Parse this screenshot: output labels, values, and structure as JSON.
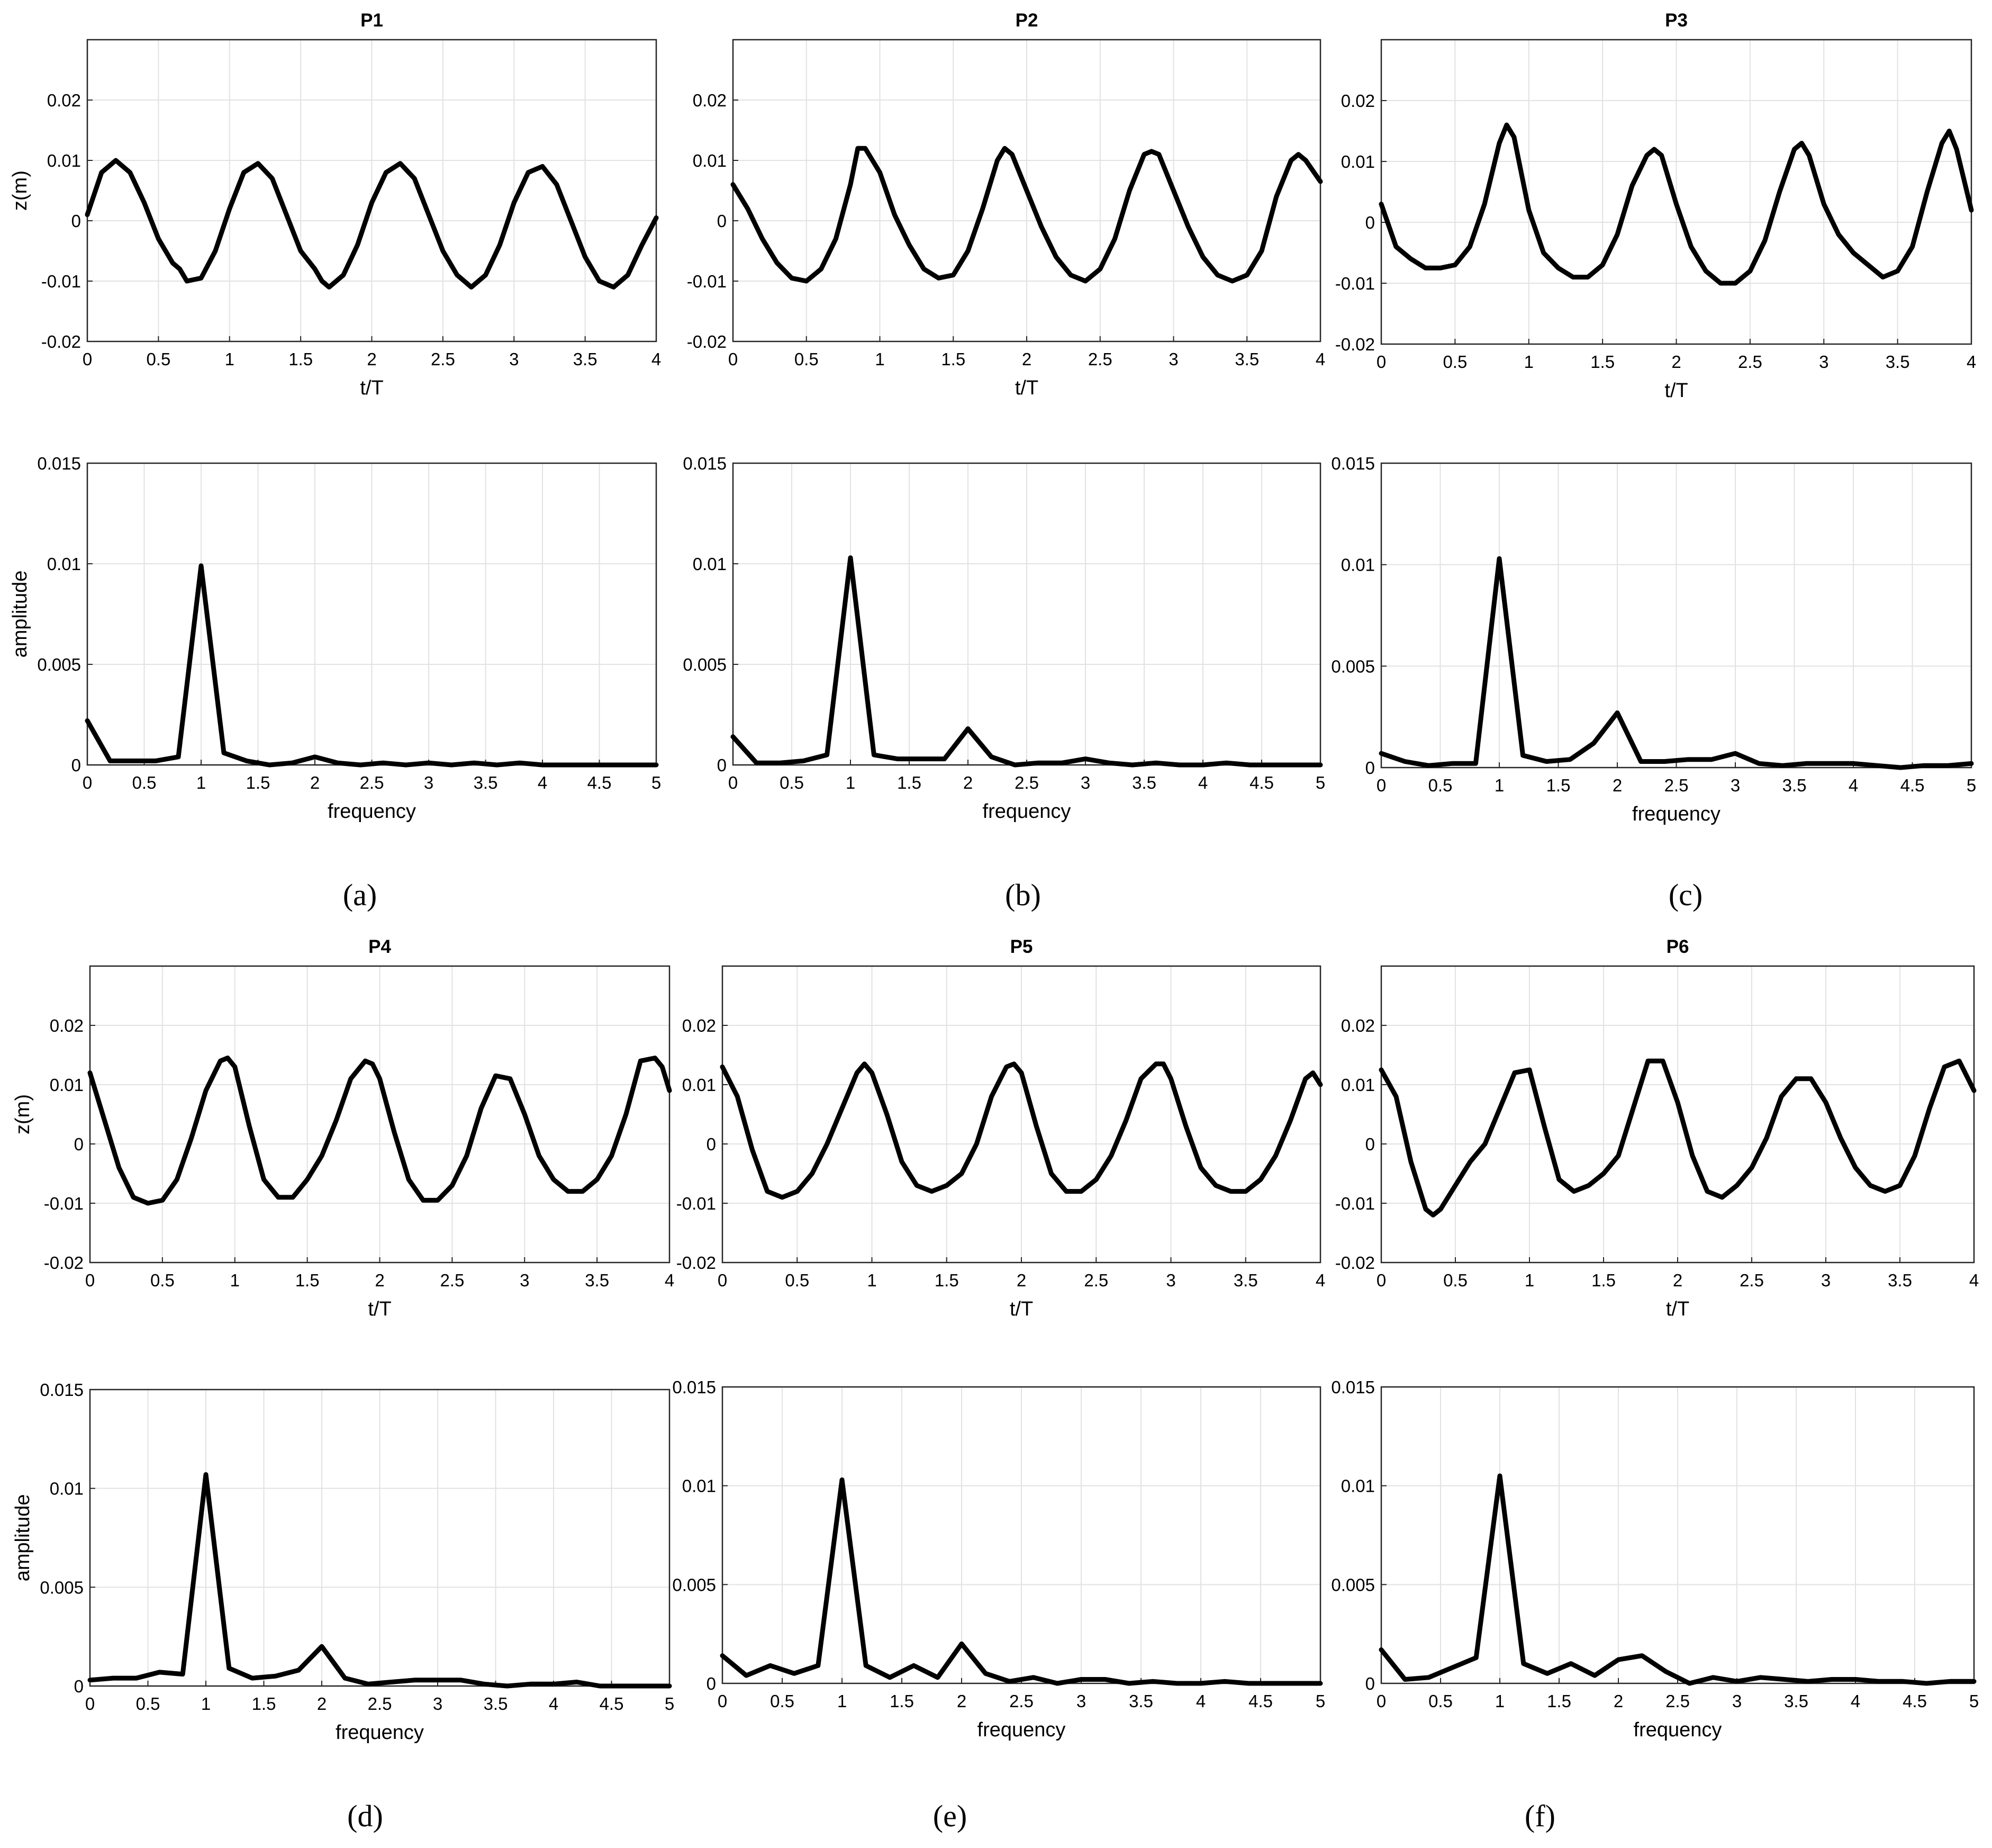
{
  "panels": [
    {
      "label": "(a)",
      "title": "P1"
    },
    {
      "label": "(b)",
      "title": "P2"
    },
    {
      "label": "(c)",
      "title": "P3"
    },
    {
      "label": "(d)",
      "title": "P4"
    },
    {
      "label": "(e)",
      "title": "P5"
    },
    {
      "label": "(f)",
      "title": "P6"
    }
  ],
  "chart_data": [
    {
      "panel": "(a)",
      "kind": "time",
      "type": "line",
      "title": "P1",
      "xlabel": "t/T",
      "ylabel": "z(m)",
      "xlim": [
        0,
        4
      ],
      "ylim": [
        -0.02,
        0.03
      ],
      "x": [
        0,
        0.1,
        0.2,
        0.3,
        0.4,
        0.5,
        0.6,
        0.65,
        0.7,
        0.8,
        0.9,
        1.0,
        1.1,
        1.2,
        1.3,
        1.4,
        1.5,
        1.6,
        1.65,
        1.7,
        1.8,
        1.9,
        2.0,
        2.1,
        2.2,
        2.3,
        2.4,
        2.5,
        2.6,
        2.7,
        2.8,
        2.9,
        3.0,
        3.1,
        3.2,
        3.3,
        3.4,
        3.5,
        3.6,
        3.7,
        3.8,
        3.9,
        4.0
      ],
      "y": [
        0.001,
        0.008,
        0.01,
        0.008,
        0.003,
        -0.003,
        -0.007,
        -0.008,
        -0.01,
        -0.0095,
        -0.005,
        0.002,
        0.008,
        0.0095,
        0.007,
        0.001,
        -0.005,
        -0.008,
        -0.01,
        -0.011,
        -0.009,
        -0.004,
        0.003,
        0.008,
        0.0095,
        0.007,
        0.001,
        -0.005,
        -0.009,
        -0.011,
        -0.009,
        -0.004,
        0.003,
        0.008,
        0.009,
        0.006,
        0.0,
        -0.006,
        -0.01,
        -0.011,
        -0.009,
        -0.004,
        0.0005
      ],
      "xticks": [
        "0",
        "0.5",
        "1",
        "1.5",
        "2",
        "2.5",
        "3",
        "3.5",
        "4"
      ],
      "yticks": [
        "-0.02",
        "-0.01",
        "0",
        "0.01",
        "0.02"
      ]
    },
    {
      "panel": "(a)",
      "kind": "freq",
      "type": "line",
      "xlabel": "frequency",
      "ylabel": "amplitude",
      "xlim": [
        0,
        5
      ],
      "ylim": [
        0,
        0.015
      ],
      "x": [
        0,
        0.2,
        0.4,
        0.6,
        0.8,
        1.0,
        1.2,
        1.4,
        1.6,
        1.8,
        2.0,
        2.2,
        2.4,
        2.6,
        2.8,
        3.0,
        3.2,
        3.4,
        3.6,
        3.8,
        4.0,
        4.2,
        4.4,
        4.6,
        4.8,
        5.0
      ],
      "y": [
        0.0022,
        0.0002,
        0.0002,
        0.0002,
        0.0004,
        0.0099,
        0.0006,
        0.0002,
        0.0,
        0.0001,
        0.0004,
        0.0001,
        0.0,
        0.0001,
        0.0,
        0.0001,
        0.0,
        0.0001,
        0.0,
        0.0001,
        0.0,
        0.0,
        0.0,
        0.0,
        0.0,
        0.0
      ],
      "xticks": [
        "0",
        "0.5",
        "1",
        "1.5",
        "2",
        "2.5",
        "3",
        "3.5",
        "4",
        "4.5",
        "5"
      ],
      "yticks": [
        "0",
        "0.005",
        "0.01",
        "0.015"
      ]
    },
    {
      "panel": "(b)",
      "kind": "time",
      "type": "line",
      "title": "P2",
      "xlabel": "t/T",
      "ylabel": "",
      "xlim": [
        0,
        4
      ],
      "ylim": [
        -0.02,
        0.03
      ],
      "x": [
        0,
        0.1,
        0.2,
        0.3,
        0.4,
        0.5,
        0.6,
        0.7,
        0.8,
        0.85,
        0.9,
        1.0,
        1.1,
        1.2,
        1.3,
        1.4,
        1.5,
        1.6,
        1.7,
        1.8,
        1.85,
        1.9,
        2.0,
        2.1,
        2.2,
        2.3,
        2.4,
        2.5,
        2.6,
        2.7,
        2.8,
        2.85,
        2.9,
        3.0,
        3.1,
        3.2,
        3.3,
        3.4,
        3.5,
        3.6,
        3.7,
        3.8,
        3.85,
        3.9,
        4.0
      ],
      "y": [
        0.006,
        0.002,
        -0.003,
        -0.007,
        -0.0095,
        -0.01,
        -0.008,
        -0.003,
        0.006,
        0.012,
        0.012,
        0.008,
        0.001,
        -0.004,
        -0.008,
        -0.0095,
        -0.009,
        -0.005,
        0.002,
        0.01,
        0.012,
        0.011,
        0.005,
        -0.001,
        -0.006,
        -0.009,
        -0.01,
        -0.008,
        -0.003,
        0.005,
        0.011,
        0.0115,
        0.011,
        0.005,
        -0.001,
        -0.006,
        -0.009,
        -0.01,
        -0.009,
        -0.005,
        0.004,
        0.01,
        0.011,
        0.01,
        0.0065
      ],
      "xticks": [
        "0",
        "0.5",
        "1",
        "1.5",
        "2",
        "2.5",
        "3",
        "3.5",
        "4"
      ],
      "yticks": [
        "-0.02",
        "-0.01",
        "0",
        "0.01",
        "0.02"
      ]
    },
    {
      "panel": "(b)",
      "kind": "freq",
      "type": "line",
      "xlabel": "frequency",
      "ylabel": "",
      "xlim": [
        0,
        5
      ],
      "ylim": [
        0,
        0.015
      ],
      "x": [
        0,
        0.2,
        0.4,
        0.6,
        0.8,
        1.0,
        1.2,
        1.4,
        1.6,
        1.8,
        2.0,
        2.2,
        2.4,
        2.6,
        2.8,
        3.0,
        3.2,
        3.4,
        3.6,
        3.8,
        4.0,
        4.2,
        4.4,
        4.6,
        4.8,
        5.0
      ],
      "y": [
        0.0014,
        0.0001,
        0.0001,
        0.0002,
        0.0005,
        0.0103,
        0.0005,
        0.0003,
        0.0003,
        0.0003,
        0.0018,
        0.0004,
        0.0,
        0.0001,
        0.0001,
        0.0003,
        0.0001,
        0.0,
        0.0001,
        0.0,
        0.0,
        0.0001,
        0.0,
        0.0,
        0.0,
        0.0
      ],
      "xticks": [
        "0",
        "0.5",
        "1",
        "1.5",
        "2",
        "2.5",
        "3",
        "3.5",
        "4",
        "4.5",
        "5"
      ],
      "yticks": [
        "0",
        "0.005",
        "0.01",
        "0.015"
      ]
    },
    {
      "panel": "(c)",
      "kind": "time",
      "type": "line",
      "title": "P3",
      "xlabel": "t/T",
      "ylabel": "",
      "xlim": [
        0,
        4
      ],
      "ylim": [
        -0.02,
        0.03
      ],
      "x": [
        0,
        0.1,
        0.2,
        0.3,
        0.4,
        0.5,
        0.6,
        0.7,
        0.8,
        0.85,
        0.9,
        1.0,
        1.1,
        1.2,
        1.3,
        1.4,
        1.5,
        1.6,
        1.7,
        1.8,
        1.85,
        1.9,
        2.0,
        2.1,
        2.2,
        2.3,
        2.4,
        2.5,
        2.6,
        2.7,
        2.8,
        2.85,
        2.9,
        3.0,
        3.1,
        3.2,
        3.3,
        3.4,
        3.5,
        3.6,
        3.7,
        3.8,
        3.85,
        3.9,
        4.0
      ],
      "y": [
        0.003,
        -0.004,
        -0.006,
        -0.0075,
        -0.0075,
        -0.007,
        -0.004,
        0.003,
        0.013,
        0.016,
        0.014,
        0.002,
        -0.005,
        -0.0075,
        -0.009,
        -0.009,
        -0.007,
        -0.002,
        0.006,
        0.011,
        0.012,
        0.011,
        0.003,
        -0.004,
        -0.008,
        -0.01,
        -0.01,
        -0.008,
        -0.003,
        0.005,
        0.012,
        0.013,
        0.011,
        0.003,
        -0.002,
        -0.005,
        -0.007,
        -0.009,
        -0.008,
        -0.004,
        0.005,
        0.013,
        0.015,
        0.012,
        0.002
      ],
      "xticks": [
        "0",
        "0.5",
        "1",
        "1.5",
        "2",
        "2.5",
        "3",
        "3.5",
        "4"
      ],
      "yticks": [
        "-0.02",
        "-0.01",
        "0",
        "0.01",
        "0.02"
      ]
    },
    {
      "panel": "(c)",
      "kind": "freq",
      "type": "line",
      "xlabel": "frequency",
      "ylabel": "",
      "xlim": [
        0,
        5
      ],
      "ylim": [
        0,
        0.015
      ],
      "x": [
        0,
        0.2,
        0.4,
        0.6,
        0.8,
        1.0,
        1.2,
        1.4,
        1.6,
        1.8,
        2.0,
        2.2,
        2.4,
        2.6,
        2.8,
        3.0,
        3.2,
        3.4,
        3.6,
        3.8,
        4.0,
        4.2,
        4.4,
        4.6,
        4.8,
        5.0
      ],
      "y": [
        0.0007,
        0.0003,
        0.0001,
        0.0002,
        0.0002,
        0.0103,
        0.0006,
        0.0003,
        0.0004,
        0.0012,
        0.0027,
        0.0003,
        0.0003,
        0.0004,
        0.0004,
        0.0007,
        0.0002,
        0.0001,
        0.0002,
        0.0002,
        0.0002,
        0.0001,
        0.0,
        0.0001,
        0.0001,
        0.0002
      ],
      "xticks": [
        "0",
        "0.5",
        "1",
        "1.5",
        "2",
        "2.5",
        "3",
        "3.5",
        "4",
        "4.5",
        "5"
      ],
      "yticks": [
        "0",
        "0.005",
        "0.01",
        "0.015"
      ]
    },
    {
      "panel": "(d)",
      "kind": "time",
      "type": "line",
      "title": "P4",
      "xlabel": "t/T",
      "ylabel": "z(m)",
      "xlim": [
        0,
        4
      ],
      "ylim": [
        -0.02,
        0.03
      ],
      "x": [
        0,
        0.1,
        0.2,
        0.3,
        0.4,
        0.5,
        0.6,
        0.7,
        0.8,
        0.9,
        0.95,
        1.0,
        1.1,
        1.2,
        1.3,
        1.4,
        1.5,
        1.6,
        1.7,
        1.8,
        1.9,
        1.95,
        2.0,
        2.1,
        2.2,
        2.3,
        2.4,
        2.5,
        2.6,
        2.7,
        2.8,
        2.9,
        3.0,
        3.1,
        3.2,
        3.3,
        3.4,
        3.5,
        3.6,
        3.7,
        3.8,
        3.9,
        3.95,
        4.0
      ],
      "y": [
        0.012,
        0.004,
        -0.004,
        -0.009,
        -0.01,
        -0.0095,
        -0.006,
        0.001,
        0.009,
        0.014,
        0.0145,
        0.013,
        0.003,
        -0.006,
        -0.009,
        -0.009,
        -0.006,
        -0.002,
        0.004,
        0.011,
        0.014,
        0.0135,
        0.011,
        0.002,
        -0.006,
        -0.0095,
        -0.0095,
        -0.007,
        -0.002,
        0.006,
        0.0115,
        0.011,
        0.005,
        -0.002,
        -0.006,
        -0.008,
        -0.008,
        -0.006,
        -0.002,
        0.005,
        0.014,
        0.0145,
        0.013,
        0.009
      ],
      "xticks": [
        "0",
        "0.5",
        "1",
        "1.5",
        "2",
        "2.5",
        "3",
        "3.5",
        "4"
      ],
      "yticks": [
        "-0.02",
        "-0.01",
        "0",
        "0.01",
        "0.02"
      ]
    },
    {
      "panel": "(d)",
      "kind": "freq",
      "type": "line",
      "xlabel": "frequency",
      "ylabel": "amplitude",
      "xlim": [
        0,
        5
      ],
      "ylim": [
        0,
        0.015
      ],
      "x": [
        0,
        0.2,
        0.4,
        0.6,
        0.8,
        1.0,
        1.2,
        1.4,
        1.6,
        1.8,
        2.0,
        2.2,
        2.4,
        2.6,
        2.8,
        3.0,
        3.2,
        3.4,
        3.6,
        3.8,
        4.0,
        4.2,
        4.4,
        4.6,
        4.8,
        5.0
      ],
      "y": [
        0.0003,
        0.0004,
        0.0004,
        0.0007,
        0.0006,
        0.0107,
        0.0009,
        0.0004,
        0.0005,
        0.0008,
        0.002,
        0.0004,
        0.0001,
        0.0002,
        0.0003,
        0.0003,
        0.0003,
        0.0001,
        0.0,
        0.0001,
        0.0001,
        0.0002,
        0.0,
        0.0,
        0.0,
        0.0
      ],
      "xticks": [
        "0",
        "0.5",
        "1",
        "1.5",
        "2",
        "2.5",
        "3",
        "3.5",
        "4",
        "4.5",
        "5"
      ],
      "yticks": [
        "0",
        "0.005",
        "0.01",
        "0.015"
      ]
    },
    {
      "panel": "(e)",
      "kind": "time",
      "type": "line",
      "title": "P5",
      "xlabel": "t/T",
      "ylabel": "",
      "xlim": [
        0,
        4
      ],
      "ylim": [
        -0.02,
        0.03
      ],
      "x": [
        0,
        0.1,
        0.2,
        0.3,
        0.4,
        0.5,
        0.6,
        0.7,
        0.8,
        0.9,
        0.95,
        1.0,
        1.1,
        1.2,
        1.3,
        1.4,
        1.5,
        1.6,
        1.7,
        1.8,
        1.9,
        1.95,
        2.0,
        2.1,
        2.2,
        2.3,
        2.4,
        2.5,
        2.6,
        2.7,
        2.8,
        2.9,
        2.95,
        3.0,
        3.1,
        3.2,
        3.3,
        3.4,
        3.5,
        3.6,
        3.7,
        3.8,
        3.9,
        3.95,
        4.0
      ],
      "y": [
        0.013,
        0.008,
        -0.001,
        -0.008,
        -0.009,
        -0.008,
        -0.005,
        0.0,
        0.006,
        0.012,
        0.0135,
        0.012,
        0.005,
        -0.003,
        -0.007,
        -0.008,
        -0.007,
        -0.005,
        0.0,
        0.008,
        0.013,
        0.0135,
        0.012,
        0.003,
        -0.005,
        -0.008,
        -0.008,
        -0.006,
        -0.002,
        0.004,
        0.011,
        0.0135,
        0.0135,
        0.011,
        0.003,
        -0.004,
        -0.007,
        -0.008,
        -0.008,
        -0.006,
        -0.002,
        0.004,
        0.011,
        0.012,
        0.01
      ],
      "xticks": [
        "0",
        "0.5",
        "1",
        "1.5",
        "2",
        "2.5",
        "3",
        "3.5",
        "4"
      ],
      "yticks": [
        "-0.02",
        "-0.01",
        "0",
        "0.01",
        "0.02"
      ]
    },
    {
      "panel": "(e)",
      "kind": "freq",
      "type": "line",
      "xlabel": "frequency",
      "ylabel": "",
      "xlim": [
        0,
        5
      ],
      "ylim": [
        0,
        0.015
      ],
      "x": [
        0,
        0.2,
        0.4,
        0.6,
        0.8,
        1.0,
        1.2,
        1.4,
        1.6,
        1.8,
        2.0,
        2.2,
        2.4,
        2.6,
        2.8,
        3.0,
        3.2,
        3.4,
        3.6,
        3.8,
        4.0,
        4.2,
        4.4,
        4.6,
        4.8,
        5.0
      ],
      "y": [
        0.0014,
        0.0004,
        0.0009,
        0.0005,
        0.0009,
        0.0103,
        0.0009,
        0.0003,
        0.0009,
        0.0003,
        0.002,
        0.0005,
        0.0001,
        0.0003,
        0.0,
        0.0002,
        0.0002,
        0.0,
        0.0001,
        0.0,
        0.0,
        0.0001,
        0.0,
        0.0,
        0.0,
        0.0
      ],
      "xticks": [
        "0",
        "0.5",
        "1",
        "1.5",
        "2",
        "2.5",
        "3",
        "3.5",
        "4",
        "4.5",
        "5"
      ],
      "yticks": [
        "0",
        "0.005",
        "0.01",
        "0.015"
      ]
    },
    {
      "panel": "(f)",
      "kind": "time",
      "type": "line",
      "title": "P6",
      "xlabel": "t/T",
      "ylabel": "",
      "xlim": [
        0,
        4
      ],
      "ylim": [
        -0.02,
        0.03
      ],
      "x": [
        0,
        0.1,
        0.2,
        0.3,
        0.35,
        0.4,
        0.5,
        0.6,
        0.7,
        0.8,
        0.9,
        1.0,
        1.1,
        1.2,
        1.3,
        1.4,
        1.5,
        1.6,
        1.7,
        1.8,
        1.9,
        2.0,
        2.1,
        2.2,
        2.3,
        2.4,
        2.5,
        2.6,
        2.7,
        2.8,
        2.9,
        3.0,
        3.1,
        3.2,
        3.3,
        3.4,
        3.5,
        3.6,
        3.7,
        3.8,
        3.9,
        4.0
      ],
      "y": [
        0.0125,
        0.008,
        -0.003,
        -0.011,
        -0.012,
        -0.011,
        -0.007,
        -0.003,
        0.0,
        0.006,
        0.012,
        0.0125,
        0.003,
        -0.006,
        -0.008,
        -0.007,
        -0.005,
        -0.002,
        0.006,
        0.014,
        0.014,
        0.007,
        -0.002,
        -0.008,
        -0.009,
        -0.007,
        -0.004,
        0.001,
        0.008,
        0.011,
        0.011,
        0.007,
        0.001,
        -0.004,
        -0.007,
        -0.008,
        -0.007,
        -0.002,
        0.006,
        0.013,
        0.014,
        0.009
      ],
      "xticks": [
        "0",
        "0.5",
        "1",
        "1.5",
        "2",
        "2.5",
        "3",
        "3.5",
        "4"
      ],
      "yticks": [
        "-0.02",
        "-0.01",
        "0",
        "0.01",
        "0.02"
      ]
    },
    {
      "panel": "(f)",
      "kind": "freq",
      "type": "line",
      "xlabel": "frequency",
      "ylabel": "",
      "xlim": [
        0,
        5
      ],
      "ylim": [
        0,
        0.015
      ],
      "x": [
        0,
        0.2,
        0.4,
        0.6,
        0.8,
        1.0,
        1.2,
        1.4,
        1.6,
        1.8,
        2.0,
        2.2,
        2.4,
        2.6,
        2.8,
        3.0,
        3.2,
        3.4,
        3.6,
        3.8,
        4.0,
        4.2,
        4.4,
        4.6,
        4.8,
        5.0
      ],
      "y": [
        0.0017,
        0.0002,
        0.0003,
        0.0008,
        0.0013,
        0.0105,
        0.001,
        0.0005,
        0.001,
        0.0004,
        0.0012,
        0.0014,
        0.0006,
        0.0,
        0.0003,
        0.0001,
        0.0003,
        0.0002,
        0.0001,
        0.0002,
        0.0002,
        0.0001,
        0.0001,
        0.0,
        0.0001,
        0.0001
      ],
      "xticks": [
        "0",
        "0.5",
        "1",
        "1.5",
        "2",
        "2.5",
        "3",
        "3.5",
        "4",
        "4.5",
        "5"
      ],
      "yticks": [
        "0",
        "0.005",
        "0.01",
        "0.015"
      ]
    }
  ]
}
